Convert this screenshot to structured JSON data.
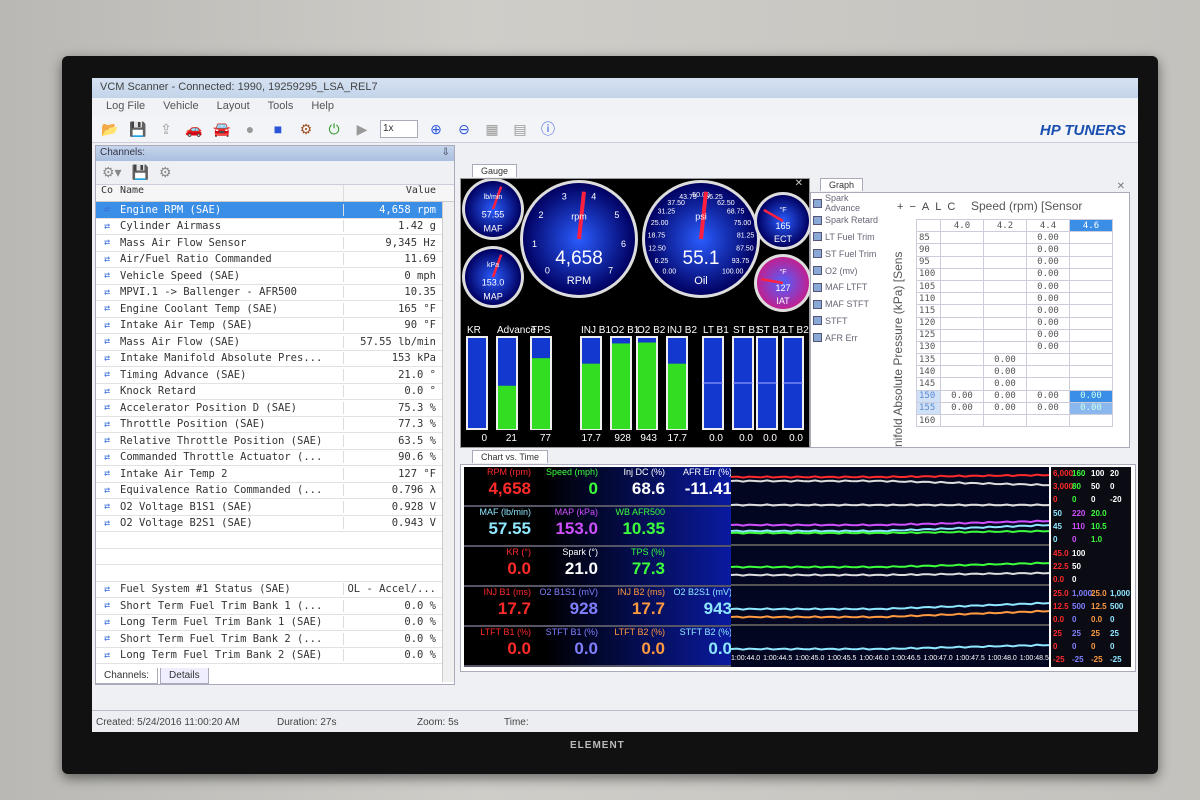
{
  "window": {
    "title": "VCM Scanner - Connected: 1990, 19259295_LSA_REL7",
    "brand_logo": "HP TUNERS",
    "tv_brand": "ELEMENT"
  },
  "menu": [
    "Log File",
    "Vehicle",
    "Layout",
    "Tools",
    "Help"
  ],
  "toolbar": {
    "playback_speed": "1x",
    "icons": [
      "open-icon",
      "save-icon",
      "export-icon",
      "vehicle-disconnected-icon",
      "vehicle-icon",
      "record-icon",
      "stop-icon",
      "engine-icon",
      "power-icon",
      "play-icon",
      "zoom-in-icon",
      "zoom-out-icon",
      "layout-icon",
      "save-layout-icon",
      "info-icon"
    ]
  },
  "channels": {
    "title": "Channels:",
    "col_co": "Co",
    "col_name": "Name",
    "col_value": "Value",
    "rows": [
      {
        "name": "Engine RPM (SAE)",
        "value": "4,658 rpm",
        "selected": true
      },
      {
        "name": "Cylinder Airmass",
        "value": "1.42 g"
      },
      {
        "name": "Mass Air Flow Sensor",
        "value": "9,345 Hz"
      },
      {
        "name": "Air/Fuel Ratio Commanded",
        "value": "11.69"
      },
      {
        "name": "Vehicle Speed (SAE)",
        "value": "0 mph"
      },
      {
        "name": "MPVI.1 -> Ballenger - AFR500",
        "value": "10.35"
      },
      {
        "name": "Engine Coolant Temp (SAE)",
        "value": "165 °F"
      },
      {
        "name": "Intake Air Temp (SAE)",
        "value": "90 °F"
      },
      {
        "name": "Mass Air Flow (SAE)",
        "value": "57.55 lb/min"
      },
      {
        "name": "Intake Manifold Absolute Pres...",
        "value": "153 kPa"
      },
      {
        "name": "Timing Advance (SAE)",
        "value": "21.0 °"
      },
      {
        "name": "Knock Retard",
        "value": "0.0 °"
      },
      {
        "name": "Accelerator Position D (SAE)",
        "value": "75.3 %"
      },
      {
        "name": "Throttle Position (SAE)",
        "value": "77.3 %"
      },
      {
        "name": "Relative Throttle Position (SAE)",
        "value": "63.5 %"
      },
      {
        "name": "Commanded Throttle Actuator (...",
        "value": "90.6 %"
      },
      {
        "name": "Intake Air Temp 2",
        "value": "127 °F"
      },
      {
        "name": "Equivalence Ratio Commanded (...",
        "value": "0.796 λ"
      },
      {
        "name": "O2 Voltage B1S1 (SAE)",
        "value": "0.928 V"
      },
      {
        "name": "O2 Voltage B2S1 (SAE)",
        "value": "0.943 V"
      },
      {
        "name": "",
        "value": ""
      },
      {
        "name": "",
        "value": ""
      },
      {
        "name": "",
        "value": ""
      },
      {
        "name": "Fuel System #1 Status (SAE)",
        "value": "OL - Accel/..."
      },
      {
        "name": "Short Term Fuel Trim Bank 1 (...",
        "value": "0.0 %"
      },
      {
        "name": "Long Term Fuel Trim Bank 1 (SAE)",
        "value": "0.0 %"
      },
      {
        "name": "Short Term Fuel Trim Bank 2 (...",
        "value": "0.0 %"
      },
      {
        "name": "Long Term Fuel Trim Bank 2 (SAE)",
        "value": "0.0 %"
      }
    ]
  },
  "bottom_tabs": [
    "Channels:",
    "Details"
  ],
  "status": {
    "created": "Created: 5/24/2016 11:00:20 AM",
    "duration": "Duration: 27s",
    "zoom": "Zoom: 5s",
    "time": "Time:"
  },
  "gauge_panel": {
    "tab": "Gauge",
    "dials": [
      {
        "label": "MAF",
        "unit": "lb/min",
        "value": "57.55"
      },
      {
        "label": "MAP",
        "unit": "kPa",
        "value": "153.0"
      },
      {
        "label": "RPM",
        "unit": "rpm",
        "value": "4,658",
        "ticks": [
          "0",
          "1",
          "2",
          "3",
          "4",
          "5",
          "6",
          "7"
        ]
      },
      {
        "label": "Oil",
        "unit": "psi",
        "value": "55.1",
        "ticks": [
          "0.00",
          "6.25",
          "12.50",
          "18.75",
          "25.00",
          "31.25",
          "37.50",
          "43.75",
          "50.00",
          "56.25",
          "62.50",
          "68.75",
          "75.00",
          "81.25",
          "87.50",
          "93.75",
          "100.00"
        ]
      },
      {
        "label": "ECT",
        "unit": "°F",
        "value": "165"
      },
      {
        "label": "IAT",
        "unit": "°F",
        "value": "127"
      }
    ],
    "bars": [
      {
        "label": "KR",
        "value": "0",
        "fraction": 0,
        "type": "fill"
      },
      {
        "label": "Advance",
        "value": "21",
        "fraction": 0.47,
        "type": "fill"
      },
      {
        "label": "TPS",
        "value": "77",
        "fraction": 0.77,
        "type": "fill"
      },
      {
        "label": "INJ B1",
        "value": "17.7",
        "fraction": 0.71,
        "type": "fill"
      },
      {
        "label": "O2 B1",
        "value": "928",
        "fraction": 0.93,
        "type": "fill"
      },
      {
        "label": "O2 B2",
        "value": "943",
        "fraction": 0.94,
        "type": "fill"
      },
      {
        "label": "INJ B2",
        "value": "17.7",
        "fraction": 0.71,
        "type": "fill"
      },
      {
        "label": "LT B1",
        "value": "0.0",
        "fraction": 0.5,
        "type": "center"
      },
      {
        "label": "ST B1",
        "value": "0.0",
        "fraction": 0.5,
        "type": "center"
      },
      {
        "label": "ST B2",
        "value": "0.0",
        "fraction": 0.5,
        "type": "center"
      },
      {
        "label": "LT B2",
        "value": "0.0",
        "fraction": 0.5,
        "type": "center"
      }
    ]
  },
  "graph_panel": {
    "tab": "Graph",
    "list": [
      "Spark Advance",
      "Spark Retard",
      "LT Fuel Trim",
      "ST Fuel Trim",
      "O2 (mv)",
      "MAF LTFT",
      "MAF STFT",
      "STFT",
      "AFR Err"
    ],
    "toolbar": [
      "+",
      "−",
      "A",
      "L",
      "C"
    ],
    "x_axis_label": "Speed (rpm) [Sensor",
    "y_axis_label": "nifold Absolute Pressure (kPa) [Sens",
    "columns": [
      "4.0",
      "4.2",
      "4.4",
      "4.6"
    ],
    "rows": [
      {
        "h": "85",
        "c": [
          "",
          "",
          "0.00",
          ""
        ]
      },
      {
        "h": "90",
        "c": [
          "",
          "",
          "0.00",
          ""
        ]
      },
      {
        "h": "95",
        "c": [
          "",
          "",
          "0.00",
          ""
        ]
      },
      {
        "h": "100",
        "c": [
          "",
          "",
          "0.00",
          ""
        ]
      },
      {
        "h": "105",
        "c": [
          "",
          "",
          "0.00",
          ""
        ]
      },
      {
        "h": "110",
        "c": [
          "",
          "",
          "0.00",
          ""
        ]
      },
      {
        "h": "115",
        "c": [
          "",
          "",
          "0.00",
          ""
        ]
      },
      {
        "h": "120",
        "c": [
          "",
          "",
          "0.00",
          ""
        ]
      },
      {
        "h": "125",
        "c": [
          "",
          "",
          "0.00",
          ""
        ]
      },
      {
        "h": "130",
        "c": [
          "",
          "",
          "0.00",
          ""
        ]
      },
      {
        "h": "135",
        "c": [
          "",
          "0.00",
          "",
          ""
        ]
      },
      {
        "h": "140",
        "c": [
          "",
          "0.00",
          "",
          ""
        ]
      },
      {
        "h": "145",
        "c": [
          "",
          "0.00",
          "",
          ""
        ]
      },
      {
        "h": "150",
        "c": [
          "0.00",
          "0.00",
          "0.00",
          "0.00"
        ]
      },
      {
        "h": "155",
        "c": [
          "0.00",
          "0.00",
          "0.00",
          "0.00"
        ]
      },
      {
        "h": "160",
        "c": [
          "",
          "",
          "",
          ""
        ]
      }
    ]
  },
  "chart_vs_time": {
    "tab": "Chart vs. Time",
    "rows": [
      [
        {
          "l": "RPM (rpm)",
          "v": "4,658",
          "c": "#ff2a2a"
        },
        {
          "l": "Speed (mph)",
          "v": "0",
          "c": "#3cff3c"
        },
        {
          "l": "Inj DC (%)",
          "v": "68.6",
          "c": "#ffffff"
        },
        {
          "l": "AFR Err (%)",
          "v": "-11.41",
          "c": "#ffffff"
        }
      ],
      [
        {
          "l": "MAF (lb/min)",
          "v": "57.55",
          "c": "#8fe8ff"
        },
        {
          "l": "MAP (kPa)",
          "v": "153.0",
          "c": "#d050ff"
        },
        {
          "l": "WB AFR500",
          "v": "10.35",
          "c": "#3cff3c"
        }
      ],
      [
        {
          "l": "KR (°)",
          "v": "0.0",
          "c": "#ff2a2a"
        },
        {
          "l": "Spark (°)",
          "v": "21.0",
          "c": "#ffffff"
        },
        {
          "l": "TPS (%)",
          "v": "77.3",
          "c": "#3cff3c"
        }
      ],
      [
        {
          "l": "INJ B1 (ms)",
          "v": "17.7",
          "c": "#ff2a2a"
        },
        {
          "l": "O2 B1S1 (mV)",
          "v": "928",
          "c": "#8080ff"
        },
        {
          "l": "INJ B2 (ms)",
          "v": "17.7",
          "c": "#ff9a40"
        },
        {
          "l": "O2 B2S1 (mV)",
          "v": "943",
          "c": "#8fe8ff"
        }
      ],
      [
        {
          "l": "LTFT B1 (%)",
          "v": "0.0",
          "c": "#ff2a2a"
        },
        {
          "l": "STFT B1 (%)",
          "v": "0.0",
          "c": "#8080ff"
        },
        {
          "l": "LTFT B2 (%)",
          "v": "0.0",
          "c": "#ff9a40"
        },
        {
          "l": "STFT B2 (%)",
          "v": "0.0",
          "c": "#8fe8ff"
        }
      ]
    ],
    "time_ticks": [
      "1:00:44.0",
      "1:00:44.5",
      "1:00:45.0",
      "1:00:45.5",
      "1:00:46.0",
      "1:00:46.5",
      "1:00:47.0",
      "1:00:47.5",
      "1:00:48.0",
      "1:00:48.5"
    ],
    "scales": [
      [
        [
          "6,000",
          "160",
          "100",
          "20"
        ],
        [
          "3,000",
          "80",
          "50",
          "0"
        ],
        [
          "0",
          "0",
          "0",
          "-20"
        ]
      ],
      [
        [
          "50",
          "220",
          "20.0"
        ],
        [
          "45",
          "110",
          "10.5"
        ],
        [
          "0",
          "0",
          "1.0"
        ]
      ],
      [
        [
          "45.0",
          "100"
        ],
        [
          "22.5",
          "50"
        ],
        [
          "0.0",
          "0"
        ]
      ],
      [
        [
          "25.0",
          "1,000",
          "25.0",
          "1,000"
        ],
        [
          "12.5",
          "500",
          "12.5",
          "500"
        ],
        [
          "0.0",
          "0",
          "0.0",
          "0"
        ]
      ],
      [
        [
          "25",
          "25",
          "25",
          "25"
        ],
        [
          "0",
          "0",
          "0",
          "0"
        ],
        [
          "-25",
          "-25",
          "-25",
          "-25"
        ]
      ]
    ],
    "scale_colors": [
      [
        "#ff2a2a",
        "#3cff3c",
        "#ffffff",
        "#ffffff"
      ],
      [
        "#8fe8ff",
        "#d050ff",
        "#3cff3c"
      ],
      [
        "#ff2a2a",
        "#ffffff",
        "#3cff3c"
      ],
      [
        "#ff2a2a",
        "#8080ff",
        "#ff9a40",
        "#8fe8ff"
      ],
      [
        "#ff2a2a",
        "#8080ff",
        "#ff9a40",
        "#8fe8ff"
      ]
    ]
  },
  "colors": {
    "selection": "#3a8ee6",
    "bar_fill": "#33dd22",
    "dial_blue": "#1a3cff",
    "needle": "#ff2040"
  }
}
